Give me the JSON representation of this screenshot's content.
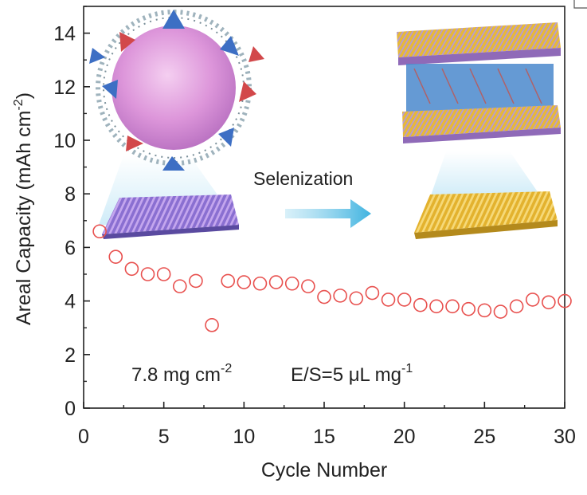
{
  "chart_data": {
    "type": "scatter",
    "xlabel": "Cycle Number",
    "ylabel": "Areal Capacity (mAh cm",
    "ylabel_sup": "-2",
    "ylabel_close": ")",
    "xlim": [
      0,
      30
    ],
    "ylim": [
      0,
      15
    ],
    "xticks": [
      0,
      5,
      10,
      15,
      20,
      25,
      30
    ],
    "yticks": [
      0,
      2,
      4,
      6,
      8,
      10,
      12,
      14
    ],
    "grid": false,
    "marker_color": "#e8504e",
    "series": [
      {
        "x": [
          1,
          2,
          3,
          4,
          5,
          6,
          7,
          8,
          9,
          10,
          11,
          12,
          13,
          14,
          15,
          16,
          17,
          18,
          19,
          20,
          21,
          22,
          23,
          24,
          25,
          26,
          27,
          28,
          29,
          30
        ],
        "y": [
          6.6,
          5.65,
          5.2,
          5.0,
          5.0,
          4.55,
          4.75,
          3.1,
          4.75,
          4.7,
          4.65,
          4.7,
          4.65,
          4.55,
          4.15,
          4.2,
          4.1,
          4.3,
          4.05,
          4.05,
          3.85,
          3.8,
          3.8,
          3.7,
          3.65,
          3.6,
          3.8,
          4.05,
          3.95,
          4.0
        ]
      }
    ],
    "annotations": {
      "loading_main": "7.8 mg cm",
      "loading_sup": "-2",
      "es_main": "E/S=5 μL mg",
      "es_sup": "-1",
      "arrow_label": "Selenization"
    }
  }
}
